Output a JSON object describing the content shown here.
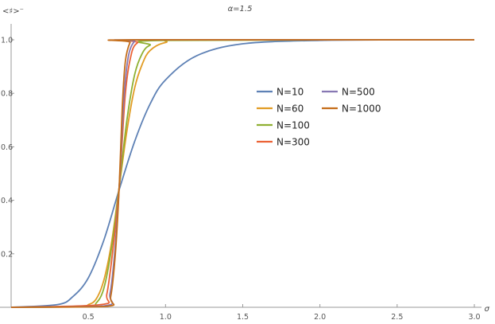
{
  "chart_data": {
    "type": "line",
    "title": "α=1.5",
    "xlabel": "σ",
    "ylabel": "<♯>⁻",
    "xlim": [
      0.0,
      3.0
    ],
    "ylim": [
      0.0,
      1.0
    ],
    "x_ticks": [
      "0.5",
      "1.0",
      "1.5",
      "2.0",
      "2.5",
      "3.0"
    ],
    "y_ticks": [
      "0.2",
      "0.4",
      "0.6",
      "0.8",
      "1.0"
    ],
    "grid": false,
    "legend_position": "right-center",
    "legend_columns": [
      [
        "N=10",
        "N=60",
        "N=100",
        "N=300"
      ],
      [
        "N=500",
        "N=1000"
      ]
    ],
    "series": [
      {
        "name": "N=10",
        "color": "#5E81B5",
        "x": [
          0.0,
          0.3,
          0.4,
          0.5,
          0.6,
          0.7,
          0.8,
          0.9,
          1.0,
          1.2,
          1.5,
          2.0,
          2.5,
          3.0
        ],
        "y": [
          0.0,
          0.01,
          0.04,
          0.11,
          0.25,
          0.44,
          0.62,
          0.76,
          0.85,
          0.94,
          0.985,
          0.998,
          1.0,
          1.0
        ]
      },
      {
        "name": "N=60",
        "color": "#E19C24",
        "x": [
          0.0,
          0.45,
          0.5,
          0.55,
          0.6,
          0.65,
          0.7,
          0.75,
          0.8,
          0.85,
          0.9,
          1.0,
          1.2,
          3.0
        ],
        "y": [
          0.0,
          0.003,
          0.01,
          0.03,
          0.1,
          0.24,
          0.45,
          0.66,
          0.82,
          0.91,
          0.96,
          0.99,
          1.0,
          1.0
        ]
      },
      {
        "name": "N=100",
        "color": "#8FB032",
        "x": [
          0.0,
          0.5,
          0.55,
          0.6,
          0.65,
          0.7,
          0.75,
          0.8,
          0.85,
          0.9,
          1.0,
          3.0
        ],
        "y": [
          0.0,
          0.003,
          0.015,
          0.07,
          0.22,
          0.45,
          0.7,
          0.87,
          0.95,
          0.98,
          0.998,
          1.0
        ]
      },
      {
        "name": "N=300",
        "color": "#EB6235",
        "x": [
          0.0,
          0.58,
          0.62,
          0.66,
          0.7,
          0.74,
          0.78,
          0.82,
          0.86,
          3.0
        ],
        "y": [
          0.0,
          0.01,
          0.05,
          0.22,
          0.45,
          0.8,
          0.95,
          0.99,
          1.0,
          1.0
        ]
      },
      {
        "name": "N=500",
        "color": "#8778B3",
        "x": [
          0.0,
          0.6,
          0.64,
          0.67,
          0.7,
          0.73,
          0.76,
          0.8,
          0.84,
          3.0
        ],
        "y": [
          0.0,
          0.005,
          0.05,
          0.2,
          0.45,
          0.78,
          0.94,
          0.995,
          1.0,
          1.0
        ]
      },
      {
        "name": "N=1000",
        "color": "#C56E1A",
        "x": [
          0.0,
          0.61,
          0.645,
          0.675,
          0.7,
          0.72,
          0.74,
          0.77,
          0.8,
          3.0
        ],
        "y": [
          0.0,
          0.003,
          0.04,
          0.2,
          0.45,
          0.75,
          0.92,
          0.99,
          1.0,
          1.0
        ]
      }
    ]
  }
}
